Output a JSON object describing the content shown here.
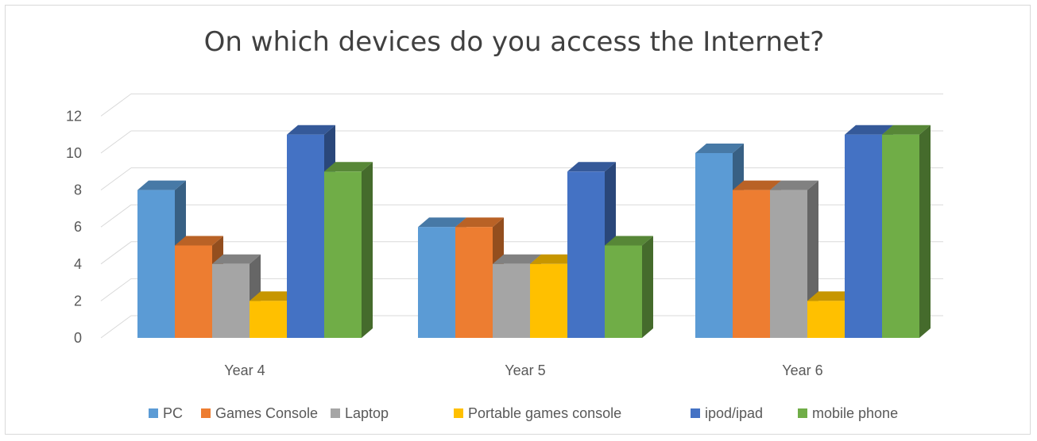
{
  "chart_data": {
    "type": "bar",
    "title": "On which devices do you access the Internet?",
    "categories": [
      "Year 4",
      "Year 5",
      "Year 6"
    ],
    "series": [
      {
        "name": "PC",
        "values": [
          8,
          6,
          10
        ],
        "color": "#5B9BD5"
      },
      {
        "name": "Games Console",
        "values": [
          5,
          6,
          8
        ],
        "color": "#ED7D31"
      },
      {
        "name": "Laptop",
        "values": [
          4,
          4,
          8
        ],
        "color": "#A5A5A5"
      },
      {
        "name": "Portable games console",
        "values": [
          2,
          4,
          2
        ],
        "color": "#FFC000"
      },
      {
        "name": "ipod/ipad",
        "values": [
          11,
          9,
          11
        ],
        "color": "#4472C4"
      },
      {
        "name": "mobile phone",
        "values": [
          9,
          5,
          11
        ],
        "color": "#70AD47"
      }
    ],
    "y_ticks": [
      "0",
      "2",
      "4",
      "6",
      "8",
      "10",
      "12"
    ],
    "ylim": [
      0,
      13
    ],
    "grid": true,
    "legend_position": "bottom"
  }
}
